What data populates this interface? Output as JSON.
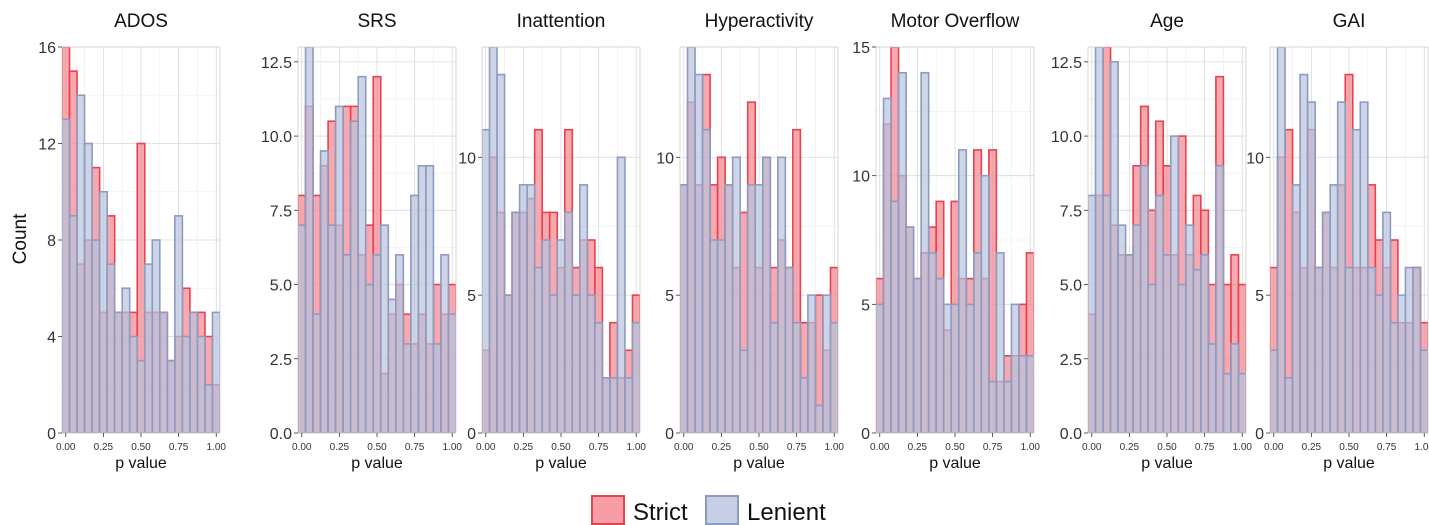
{
  "chart_data": {
    "type": "bar",
    "ylabel": "Count",
    "xlabel": "p value",
    "x_ticks": [
      0,
      0.25,
      0.5,
      0.75,
      1.0
    ],
    "x_tick_labels": [
      "0.00",
      "0.25",
      "0.50",
      "0.75",
      "1.00"
    ],
    "xlim": [
      -0.025,
      1.025
    ],
    "bin_width": 0.05,
    "bin_centers": [
      0,
      0.05,
      0.1,
      0.15,
      0.2,
      0.25,
      0.3,
      0.35,
      0.4,
      0.45,
      0.5,
      0.55,
      0.6,
      0.65,
      0.7,
      0.75,
      0.8,
      0.85,
      0.9,
      0.95,
      1.0
    ],
    "legend": {
      "position": "bottom",
      "entries": [
        {
          "name": "Strict",
          "fill": "#f4858f",
          "stroke": "#e8414f"
        },
        {
          "name": "Lenient",
          "fill": "#b8c3dc",
          "stroke": "#8d9bc4"
        }
      ]
    },
    "colors": {
      "strict_fill": "#f4858f",
      "strict_stroke": "#e8414f",
      "lenient_fill": "#b8c3dc",
      "lenient_stroke": "#8d9bc4",
      "bar_opacity": 0.7
    },
    "facets": [
      {
        "title": "ADOS",
        "ylim": [
          0,
          16
        ],
        "y_ticks": [
          0,
          4,
          8,
          12,
          16
        ],
        "y_tick_labels": [
          "0",
          "4",
          "8",
          "12",
          "16"
        ],
        "series": [
          {
            "name": "Strict",
            "values": [
              16,
              15,
              7,
              8,
              11,
              5,
              9,
              5,
              5,
              5,
              12,
              5,
              5,
              5,
              3,
              4,
              6,
              5,
              5,
              4,
              2
            ]
          },
          {
            "name": "Lenient",
            "values": [
              13,
              9,
              14,
              12,
              8,
              10,
              7,
              5,
              6,
              4,
              3,
              7,
              8,
              5,
              3,
              9,
              4,
              5,
              4,
              2,
              5
            ]
          }
        ]
      },
      {
        "title": "SRS",
        "ylim": [
          0,
          13
        ],
        "y_ticks": [
          0,
          2.5,
          5,
          7.5,
          10,
          12.5
        ],
        "y_tick_labels": [
          "0.0",
          "2.5",
          "5.0",
          "7.5",
          "10.0",
          "12.5"
        ],
        "series": [
          {
            "name": "Strict",
            "values": [
              8,
              11,
              8,
              9,
              10.5,
              7,
              11,
              11,
              6,
              7,
              12,
              2,
              4,
              5,
              4,
              3,
              4,
              3,
              5,
              4,
              5
            ]
          },
          {
            "name": "Lenient",
            "values": [
              7,
              13,
              4,
              9.5,
              7,
              11,
              6,
              10.5,
              12,
              5,
              6,
              7,
              4.5,
              6,
              3,
              8,
              9,
              9,
              3,
              6,
              4
            ]
          }
        ]
      },
      {
        "title": "Inattention",
        "ylim": [
          0,
          14
        ],
        "y_ticks": [
          0,
          5,
          10
        ],
        "y_tick_labels": [
          "0",
          "5",
          "10"
        ],
        "series": [
          {
            "name": "Strict",
            "values": [
              3,
              10,
              8,
              5,
              8,
              8,
              8.5,
              11,
              8,
              8,
              6,
              11,
              6,
              7,
              7,
              6,
              2,
              4,
              2,
              3,
              5
            ]
          },
          {
            "name": "Lenient",
            "values": [
              11,
              14,
              13,
              5,
              8,
              9,
              9,
              6,
              7,
              5,
              7,
              8,
              5,
              9,
              5,
              4,
              2,
              2,
              10,
              2,
              4
            ]
          }
        ]
      },
      {
        "title": "Hyperactivity",
        "ylim": [
          0,
          14
        ],
        "y_ticks": [
          0,
          5,
          10
        ],
        "y_tick_labels": [
          "0",
          "5",
          "10"
        ],
        "series": [
          {
            "name": "Strict",
            "values": [
              9,
              12,
              9,
              13,
              9,
              10,
              9,
              6,
              8,
              12,
              6,
              10,
              6,
              7,
              6,
              11,
              4,
              4,
              5,
              3,
              6
            ]
          },
          {
            "name": "Lenient",
            "values": [
              9,
              14,
              13,
              11,
              7,
              7,
              9,
              10,
              3,
              9,
              9,
              10,
              4,
              10,
              6,
              4,
              2,
              5,
              1,
              5,
              4
            ]
          }
        ]
      },
      {
        "title": "Motor Overflow",
        "ylim": [
          0,
          15
        ],
        "y_ticks": [
          0,
          5,
          10,
          15
        ],
        "y_tick_labels": [
          "0",
          "5",
          "10",
          "15"
        ],
        "series": [
          {
            "name": "Strict",
            "values": [
              6,
              12,
              15,
              10,
              8,
              6,
              7,
              8,
              9,
              4,
              9,
              6,
              6,
              11,
              6,
              11,
              2,
              3,
              3,
              5,
              7
            ]
          },
          {
            "name": "Lenient",
            "values": [
              5,
              13,
              9,
              14,
              8,
              6,
              14,
              7,
              6,
              5,
              5,
              11,
              5,
              7,
              10,
              2,
              7,
              2,
              5,
              3,
              3
            ]
          }
        ]
      },
      {
        "title": "Age",
        "ylim": [
          0,
          13
        ],
        "y_ticks": [
          0,
          2.5,
          5,
          7.5,
          10,
          12.5
        ],
        "y_tick_labels": [
          "0.0",
          "2.5",
          "5.0",
          "7.5",
          "10.0",
          "12.5"
        ],
        "series": [
          {
            "name": "Strict",
            "values": [
              4,
              8,
              13,
              7,
              6,
              6,
              9,
              11,
              7.5,
              10.5,
              9,
              6,
              10,
              6,
              8,
              7.5,
              5,
              12,
              5,
              6,
              5
            ]
          },
          {
            "name": "Lenient",
            "values": [
              8,
              13,
              8,
              12.5,
              7,
              6,
              7,
              9,
              5,
              8,
              6,
              10,
              5,
              7,
              5.5,
              6,
              3,
              9,
              2,
              3,
              2
            ]
          }
        ]
      },
      {
        "title": "GAI",
        "ylim": [
          0,
          14
        ],
        "y_ticks": [
          0,
          5,
          10
        ],
        "y_tick_labels": [
          "0",
          "5",
          "10"
        ],
        "series": [
          {
            "name": "Strict",
            "values": [
              6,
              10,
              11,
              8,
              6,
              11,
              6,
              8,
              6,
              9,
              13,
              6,
              6,
              9,
              7,
              6,
              7,
              4,
              4,
              6,
              4
            ]
          },
          {
            "name": "Lenient",
            "values": [
              3,
              14,
              2,
              9,
              13,
              12,
              6,
              8,
              9,
              12,
              6,
              11,
              12,
              6,
              5,
              8,
              4,
              5,
              6,
              6,
              3
            ]
          }
        ]
      }
    ]
  }
}
